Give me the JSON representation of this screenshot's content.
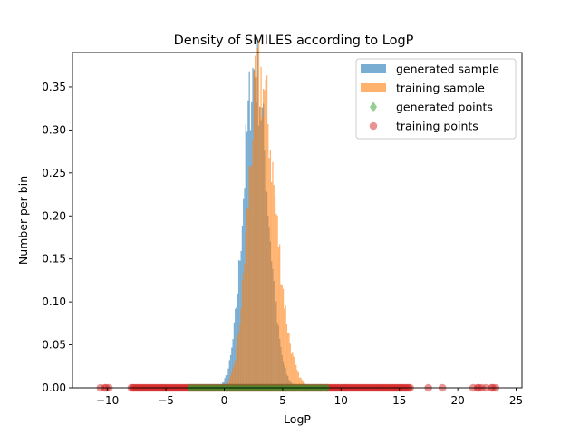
{
  "chart_data": {
    "type": "histogram",
    "title": "Density of SMILES according to LogP",
    "xlabel": "LogP",
    "ylabel": "Number per bin",
    "xlim": [
      -13,
      25.5
    ],
    "ylim": [
      0,
      0.39
    ],
    "xticks": [
      -10,
      -5,
      0,
      5,
      10,
      15,
      20,
      25
    ],
    "yticks": [
      0.0,
      0.05,
      0.1,
      0.15,
      0.2,
      0.25,
      0.3,
      0.35
    ],
    "ytick_labels": [
      "0.00",
      "0.05",
      "0.10",
      "0.15",
      "0.20",
      "0.25",
      "0.30",
      "0.35"
    ],
    "legend_position": "upper-right",
    "series": [
      {
        "name": "generated sample",
        "kind": "histogram",
        "color": "#1f77b4",
        "alpha": 0.6,
        "peak_x": 2.6,
        "peak_y": 0.37,
        "sigma_left": 0.95,
        "sigma_right": 1.1
      },
      {
        "name": "training sample",
        "kind": "histogram",
        "color": "#ff7f0e",
        "alpha": 0.6,
        "peak_x": 3.0,
        "peak_y": 0.36,
        "sigma_left": 0.95,
        "sigma_right": 1.35
      },
      {
        "name": "generated points",
        "kind": "scatter",
        "marker": "diamond",
        "color": "#2ca02c",
        "alpha": 0.5,
        "x_range": [
          -3,
          9
        ],
        "y": 0
      },
      {
        "name": "training points",
        "kind": "scatter",
        "marker": "circle",
        "color": "#d62728",
        "alpha": 0.5,
        "x_range": [
          -11.2,
          23.5
        ],
        "y": 0
      }
    ]
  }
}
